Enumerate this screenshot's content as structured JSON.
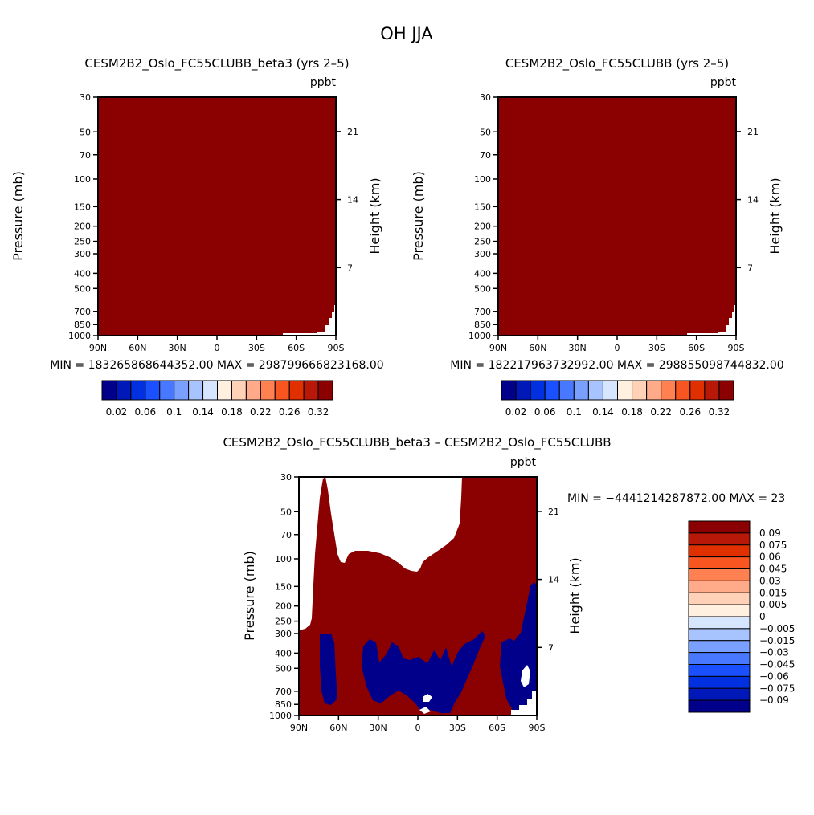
{
  "figure": {
    "title": "OH JJA"
  },
  "colors": {
    "dark_red": "#8b0000",
    "dark_blue": "#00008b",
    "white": "#ffffff",
    "axis": "#000000"
  },
  "chart_data": [
    {
      "type": "heatmap",
      "title": "CESM2B2_Oslo_FC55CLUBB_beta3 (yrs 2–5)",
      "units": "ppbt",
      "ylabel": "Pressure (mb)",
      "ylabel_right": "Height (km)",
      "x_ticks": [
        "90N",
        "60N",
        "30N",
        "0",
        "30S",
        "60S",
        "90S"
      ],
      "y_ticks": [
        "30",
        "50",
        "70",
        "100",
        "150",
        "200",
        "250",
        "300",
        "400",
        "500",
        "700",
        "850",
        "1000"
      ],
      "y_ticks_right": [
        "21",
        "14",
        "7"
      ],
      "ylim": [
        1000,
        30
      ],
      "stats": "MIN = 183265868644352.00   MAX = 298799666823168.00",
      "colorbar": {
        "colors": [
          "#00008b",
          "#0018b8",
          "#0030e0",
          "#1a50ff",
          "#4878ff",
          "#7aa0ff",
          "#a8c4ff",
          "#d6e6ff",
          "#fff0e0",
          "#ffd2b8",
          "#ffaa88",
          "#ff8050",
          "#f85520",
          "#e03000",
          "#b81808",
          "#8b0000"
        ],
        "labels": [
          "0.02",
          "0.06",
          "0.1",
          "0.14",
          "0.18",
          "0.22",
          "0.26",
          "0.32"
        ]
      },
      "field_color": "#8b0000"
    },
    {
      "type": "heatmap",
      "title": "CESM2B2_Oslo_FC55CLUBB (yrs 2–5)",
      "units": "ppbt",
      "ylabel": "Pressure (mb)",
      "ylabel_right": "Height (km)",
      "x_ticks": [
        "90N",
        "60N",
        "30N",
        "0",
        "30S",
        "60S",
        "90S"
      ],
      "y_ticks": [
        "30",
        "50",
        "70",
        "100",
        "150",
        "200",
        "250",
        "300",
        "400",
        "500",
        "700",
        "850",
        "1000"
      ],
      "y_ticks_right": [
        "21",
        "14",
        "7"
      ],
      "ylim": [
        1000,
        30
      ],
      "stats": "MIN = 182217963732992.00   MAX = 298855098744832.00",
      "colorbar": {
        "colors": [
          "#00008b",
          "#0018b8",
          "#0030e0",
          "#1a50ff",
          "#4878ff",
          "#7aa0ff",
          "#a8c4ff",
          "#d6e6ff",
          "#fff0e0",
          "#ffd2b8",
          "#ffaa88",
          "#ff8050",
          "#f85520",
          "#e03000",
          "#b81808",
          "#8b0000"
        ],
        "labels": [
          "0.02",
          "0.06",
          "0.1",
          "0.14",
          "0.18",
          "0.22",
          "0.26",
          "0.32"
        ]
      },
      "field_color": "#8b0000"
    },
    {
      "type": "heatmap",
      "title": "CESM2B2_Oslo_FC55CLUBB_beta3 – CESM2B2_Oslo_FC55CLUBB",
      "units": "ppbt",
      "ylabel": "Pressure (mb)",
      "ylabel_right": "Height (km)",
      "x_ticks": [
        "90N",
        "60N",
        "30N",
        "0",
        "30S",
        "60S",
        "90S"
      ],
      "y_ticks": [
        "30",
        "50",
        "70",
        "100",
        "150",
        "200",
        "250",
        "300",
        "400",
        "500",
        "700",
        "850",
        "1000"
      ],
      "y_ticks_right": [
        "21",
        "14",
        "7"
      ],
      "ylim": [
        1000,
        30
      ],
      "stats": "MIN = −4441214287872.00   MAX = 23",
      "colorbar": {
        "colors": [
          "#8b0000",
          "#b81808",
          "#e03000",
          "#f85520",
          "#ff8050",
          "#ffaa88",
          "#ffd2b8",
          "#fff0e0",
          "#d6e6ff",
          "#a8c4ff",
          "#7aa0ff",
          "#4878ff",
          "#1a50ff",
          "#0030e0",
          "#0018b8",
          "#00008b"
        ],
        "labels": [
          "0.09",
          "0.075",
          "0.06",
          "0.045",
          "0.03",
          "0.015",
          "0.005",
          "0",
          "−0.005",
          "−0.015",
          "−0.03",
          "−0.045",
          "−0.06",
          "−0.075",
          "−0.09"
        ]
      },
      "field_color": "#8b0000"
    }
  ]
}
